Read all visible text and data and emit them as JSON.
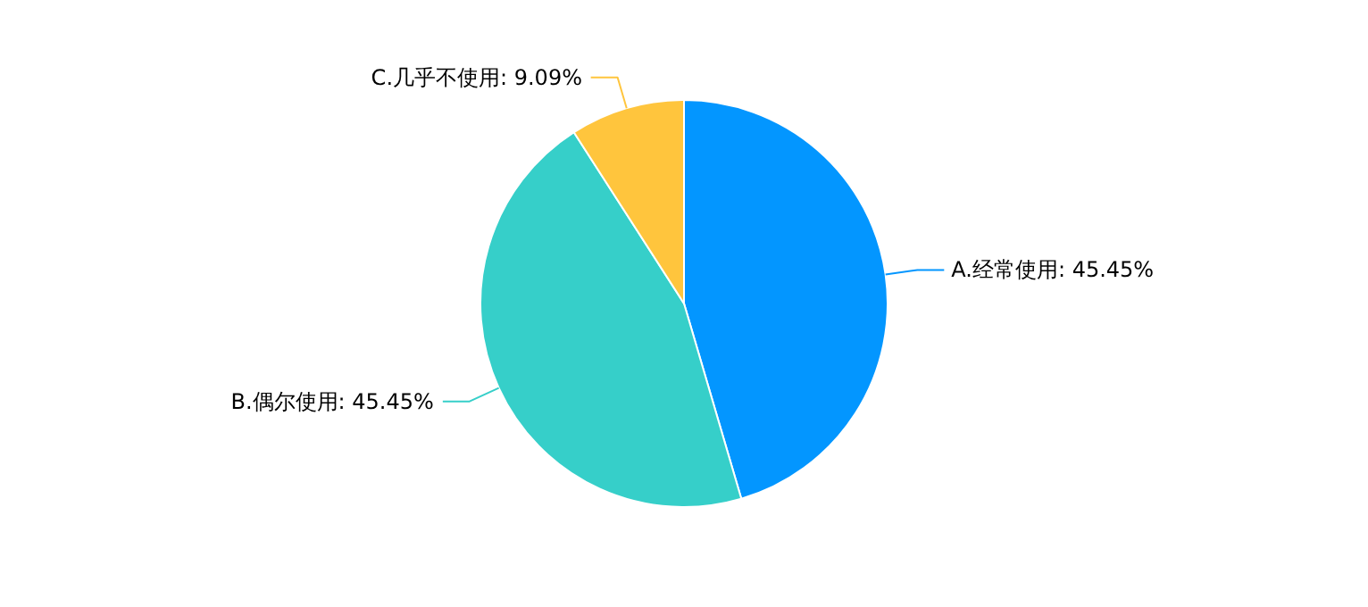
{
  "chart_data": {
    "type": "pie",
    "categories": [
      "A.经常使用",
      "B.偶尔使用",
      "C.几乎不使用"
    ],
    "values": [
      45.45,
      45.45,
      9.09
    ],
    "value_labels": [
      "45.45%",
      "45.45%",
      "9.09%"
    ],
    "colors": [
      "#0396ff",
      "#36cfc9",
      "#ffc53d"
    ]
  }
}
